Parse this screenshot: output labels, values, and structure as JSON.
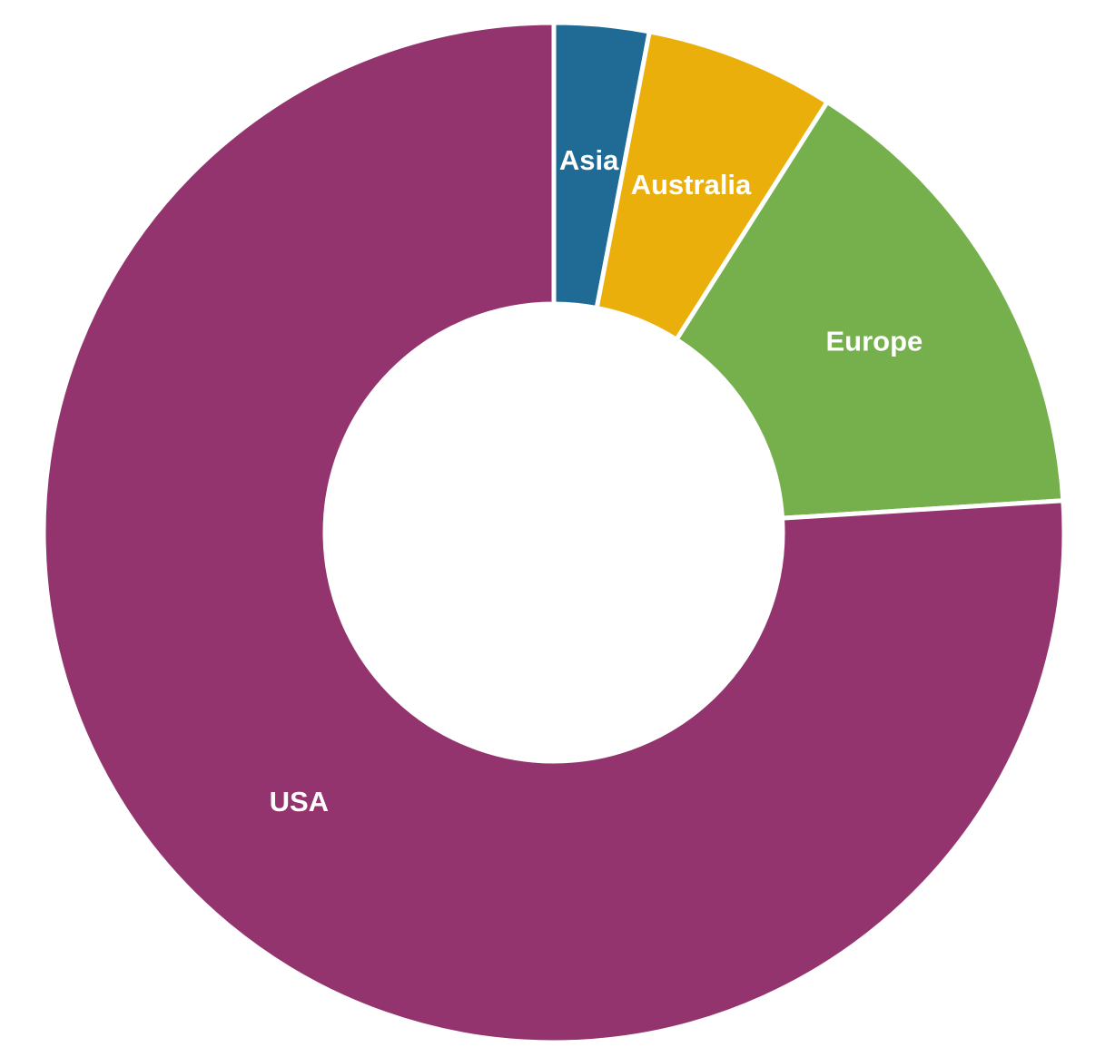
{
  "chart_data": {
    "type": "donut",
    "categories": [
      "Asia",
      "Australia",
      "Europe",
      "USA"
    ],
    "values": [
      3,
      6,
      15,
      76
    ],
    "colors": [
      "#1f6b96",
      "#ebaf0c",
      "#76b04c",
      "#93346e"
    ]
  }
}
